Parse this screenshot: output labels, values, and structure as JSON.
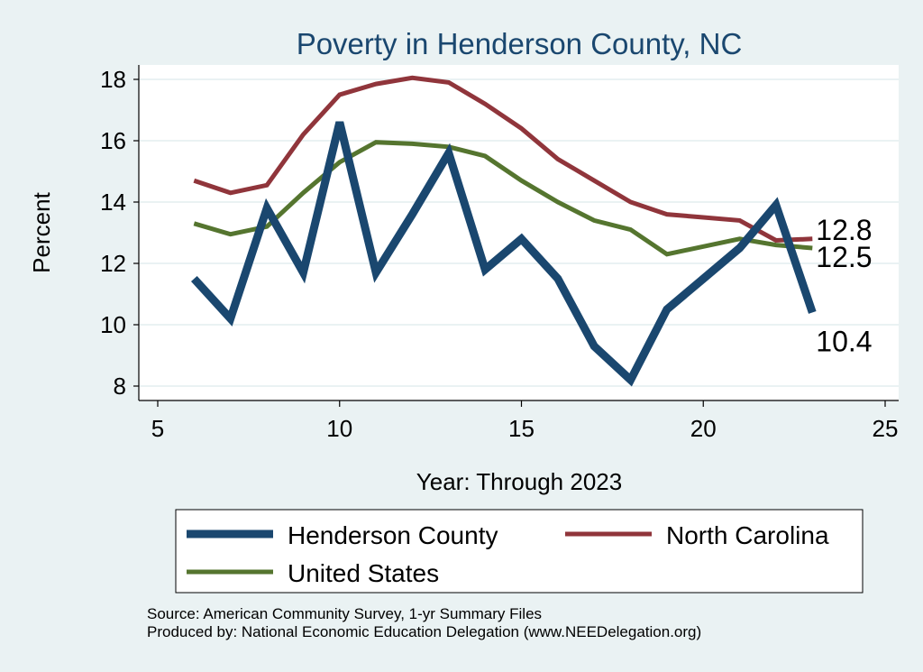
{
  "chart_data": {
    "type": "line",
    "title": "Poverty in Henderson County, NC",
    "xlabel": "Year: Through 2023",
    "ylabel": "Percent",
    "xlim": [
      5,
      25
    ],
    "ylim": [
      8,
      18
    ],
    "x_ticks": [
      5,
      10,
      15,
      20,
      25
    ],
    "y_ticks": [
      8,
      10,
      12,
      14,
      16,
      18
    ],
    "grid": true,
    "series": [
      {
        "name": "Henderson County",
        "color": "#1a476f",
        "x": [
          6,
          7,
          8,
          9,
          10,
          11,
          12,
          13,
          14,
          15,
          16,
          17,
          18,
          19,
          20,
          21,
          22,
          23
        ],
        "y": [
          11.5,
          10.2,
          13.8,
          11.7,
          16.6,
          11.7,
          13.6,
          15.6,
          11.8,
          12.8,
          11.5,
          9.3,
          8.2,
          10.5,
          11.5,
          12.5,
          13.9,
          10.4
        ],
        "end_label": "10.4"
      },
      {
        "name": "North Carolina",
        "color": "#90353b",
        "x": [
          6,
          7,
          8,
          9,
          10,
          11,
          12,
          13,
          14,
          15,
          16,
          17,
          18,
          19,
          20,
          21,
          22,
          23
        ],
        "y": [
          14.7,
          14.3,
          14.55,
          16.2,
          17.5,
          17.85,
          18.05,
          17.9,
          17.2,
          16.4,
          15.4,
          14.7,
          14.0,
          13.6,
          13.5,
          13.4,
          12.75,
          12.8
        ],
        "end_label": "12.8"
      },
      {
        "name": "United States",
        "color": "#55752f",
        "x": [
          6,
          7,
          8,
          9,
          10,
          11,
          12,
          13,
          14,
          15,
          16,
          17,
          18,
          19,
          20,
          21,
          22,
          23
        ],
        "y": [
          13.3,
          12.95,
          13.2,
          14.3,
          15.3,
          15.95,
          15.9,
          15.8,
          15.5,
          14.7,
          14.0,
          13.4,
          13.1,
          12.3,
          12.55,
          12.8,
          12.6,
          12.5
        ],
        "end_label": "12.5"
      }
    ],
    "legend": {
      "position": "bottom",
      "entries": [
        "Henderson County",
        "North Carolina",
        "United States"
      ]
    },
    "notes": [
      "Source: American Community Survey, 1-yr Summary Files",
      "Produced by: National Economic Education Delegation (www.NEEDelegation.org)"
    ]
  }
}
